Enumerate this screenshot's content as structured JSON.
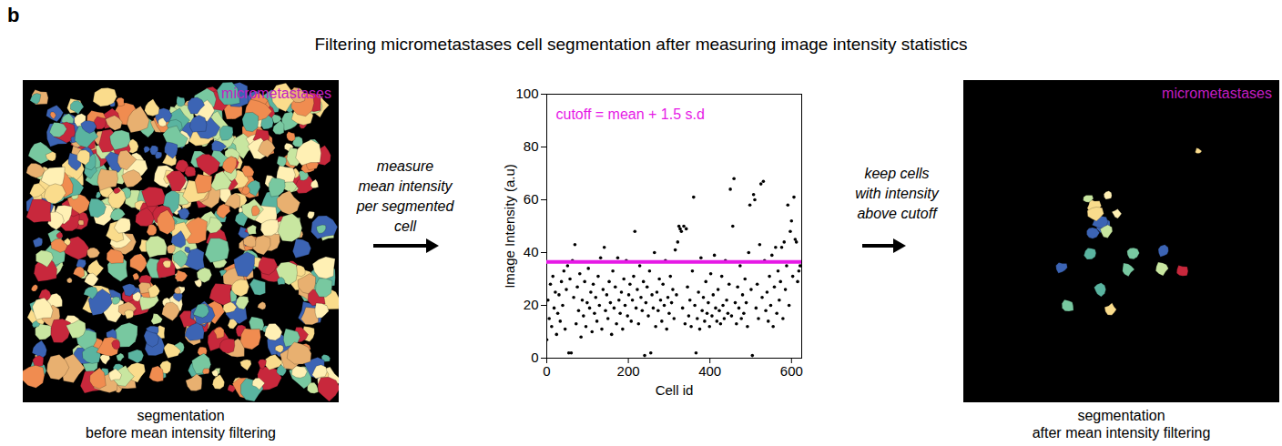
{
  "panel_label": "b",
  "title": "Filtering micrometastases cell segmentation after measuring image intensity statistics",
  "left_image": {
    "label": "micrometastases",
    "label_color": "#c21ec2",
    "caption": [
      "segmentation",
      "before mean intensity filtering"
    ]
  },
  "step_1": {
    "text": [
      "measure",
      "mean intensity",
      "per segmented",
      "cell"
    ]
  },
  "chart_data": {
    "type": "scatter",
    "x_label": "Cell id",
    "y_label": "Image Intensity (a.u)",
    "x": [
      0,
      3,
      6,
      9,
      12,
      15,
      18,
      21,
      24,
      27,
      30,
      33,
      36,
      39,
      42,
      45,
      48,
      51,
      54,
      57,
      60,
      63,
      66,
      69,
      72,
      75,
      78,
      81,
      84,
      87,
      90,
      93,
      96,
      99,
      102,
      105,
      108,
      111,
      114,
      117,
      120,
      123,
      126,
      129,
      132,
      135,
      138,
      141,
      144,
      147,
      150,
      153,
      156,
      159,
      162,
      165,
      168,
      171,
      174,
      177,
      180,
      183,
      186,
      189,
      192,
      195,
      198,
      201,
      204,
      207,
      210,
      213,
      216,
      219,
      222,
      225,
      228,
      231,
      234,
      237,
      240,
      243,
      246,
      249,
      252,
      255,
      258,
      261,
      264,
      267,
      270,
      273,
      276,
      279,
      282,
      285,
      288,
      291,
      294,
      297,
      300,
      303,
      306,
      309,
      312,
      315,
      318,
      321,
      324,
      327,
      330,
      333,
      336,
      339,
      342,
      345,
      348,
      351,
      354,
      357,
      360,
      363,
      366,
      369,
      372,
      375,
      378,
      381,
      384,
      387,
      390,
      393,
      396,
      399,
      402,
      405,
      408,
      411,
      414,
      417,
      420,
      423,
      426,
      429,
      432,
      435,
      438,
      441,
      444,
      447,
      450,
      453,
      456,
      459,
      462,
      465,
      468,
      471,
      474,
      477,
      480,
      483,
      486,
      489,
      492,
      495,
      498,
      501,
      504,
      507,
      510,
      513,
      516,
      519,
      522,
      525,
      528,
      531,
      534,
      537,
      540,
      543,
      546,
      549,
      552,
      555,
      558,
      561,
      564,
      567,
      570,
      573,
      576,
      579,
      582,
      585,
      588,
      591,
      594,
      597,
      600,
      603,
      606,
      609,
      612,
      615,
      618,
      621
    ],
    "values": [
      7,
      22,
      15,
      28,
      12,
      31,
      19,
      25,
      9,
      17,
      24,
      14,
      29,
      20,
      33,
      11,
      26,
      35,
      2,
      30,
      2,
      37,
      23,
      43,
      13,
      27,
      18,
      32,
      8,
      22,
      16,
      29,
      12,
      21,
      34,
      19,
      25,
      10,
      28,
      17,
      23,
      14,
      31,
      20,
      38,
      11,
      26,
      42,
      18,
      24,
      15,
      29,
      21,
      9,
      33,
      19,
      27,
      13,
      38,
      22,
      17,
      25,
      11,
      30,
      20,
      37,
      16,
      24,
      28,
      14,
      22,
      31,
      48,
      19,
      26,
      13,
      35,
      23,
      18,
      29,
      1,
      21,
      27,
      16,
      33,
      2,
      24,
      19,
      40,
      12,
      25,
      18,
      30,
      22,
      14,
      28,
      20,
      37,
      11,
      23,
      17,
      31,
      21,
      26,
      15,
      41,
      24,
      44,
      50,
      49,
      48,
      19,
      50,
      13,
      49,
      27,
      16,
      22,
      12,
      33,
      61,
      20,
      2,
      15,
      25,
      11,
      38,
      18,
      23,
      14,
      29,
      17,
      21,
      12,
      32,
      16,
      24,
      39,
      19,
      14,
      26,
      18,
      13,
      31,
      20,
      15,
      37,
      22,
      17,
      28,
      64,
      16,
      50,
      68,
      21,
      13,
      27,
      19,
      35,
      15,
      24,
      17,
      30,
      21,
      12,
      40,
      58,
      26,
      1,
      62,
      60,
      19,
      28,
      15,
      43,
      66,
      23,
      67,
      37,
      18,
      25,
      14,
      31,
      20,
      39,
      12,
      27,
      42,
      17,
      33,
      22,
      29,
      42,
      15,
      44,
      26,
      35,
      58,
      20,
      48,
      52,
      31,
      61,
      45,
      44,
      29,
      33,
      35
    ],
    "color": "#000000",
    "xlim": [
      0,
      625
    ],
    "ylim": [
      0,
      100
    ],
    "xticks": [
      0,
      200,
      400,
      600
    ],
    "yticks": [
      0,
      20,
      40,
      60,
      80,
      100
    ],
    "cutoff": {
      "value": 36.5,
      "label": "cutoff = mean + 1.5 s.d",
      "color": "#e619e6"
    }
  },
  "step_2": {
    "text": [
      "keep cells",
      "with intensity",
      "above cutoff"
    ]
  },
  "right_image": {
    "label": "micrometastases",
    "label_color": "#c21ec2",
    "caption": [
      "segmentation",
      "after mean intensity filtering"
    ]
  }
}
